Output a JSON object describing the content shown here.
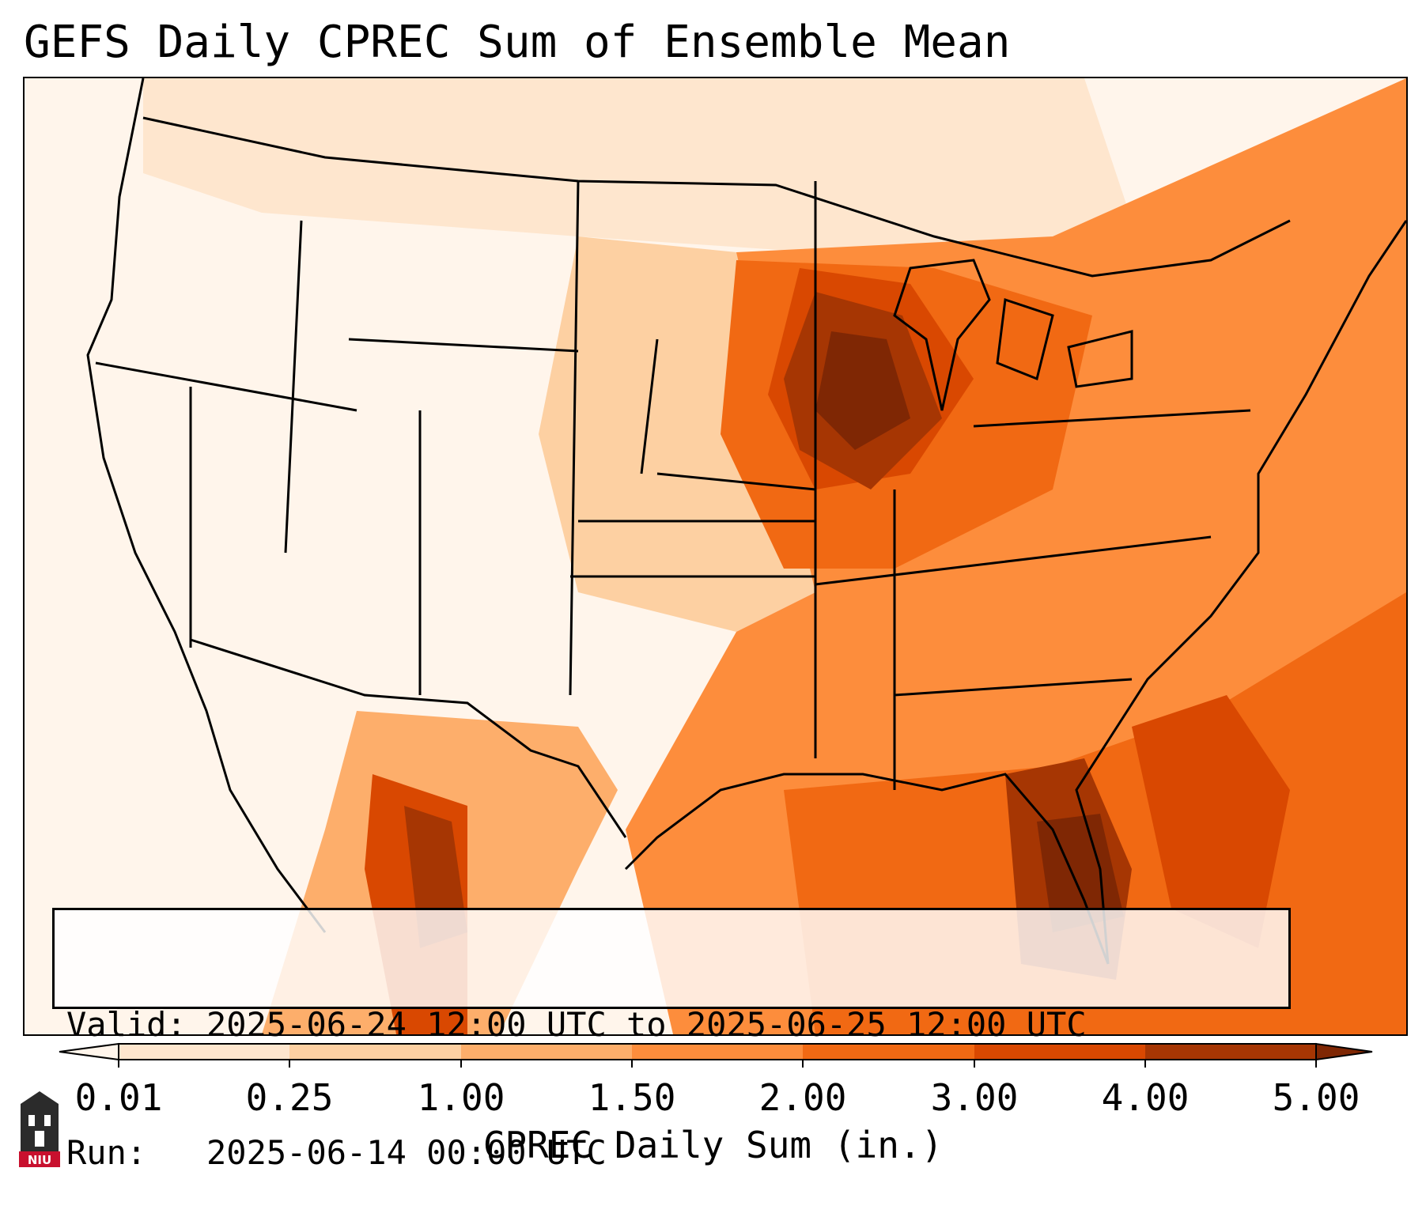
{
  "title": "GEFS Daily CPREC Sum of Ensemble Mean",
  "info": {
    "valid_label": "Valid:",
    "valid_value": "2025-06-24 12:00 UTC to 2025-06-25 12:00 UTC",
    "run_label": "Run:  ",
    "run_value": "2025-06-14 00:00 UTC"
  },
  "colorbar": {
    "label": "CPREC Daily Sum (in.)",
    "ticks": [
      "0.01",
      "0.25",
      "1.00",
      "1.50",
      "2.00",
      "3.00",
      "4.00",
      "5.00"
    ],
    "colors": [
      "#fff5eb",
      "#fee6ce",
      "#fdd0a2",
      "#fdae6b",
      "#fd8d3c",
      "#f16913",
      "#d94801",
      "#a63603",
      "#7f2704"
    ]
  },
  "logo": {
    "text": "NIU"
  }
}
